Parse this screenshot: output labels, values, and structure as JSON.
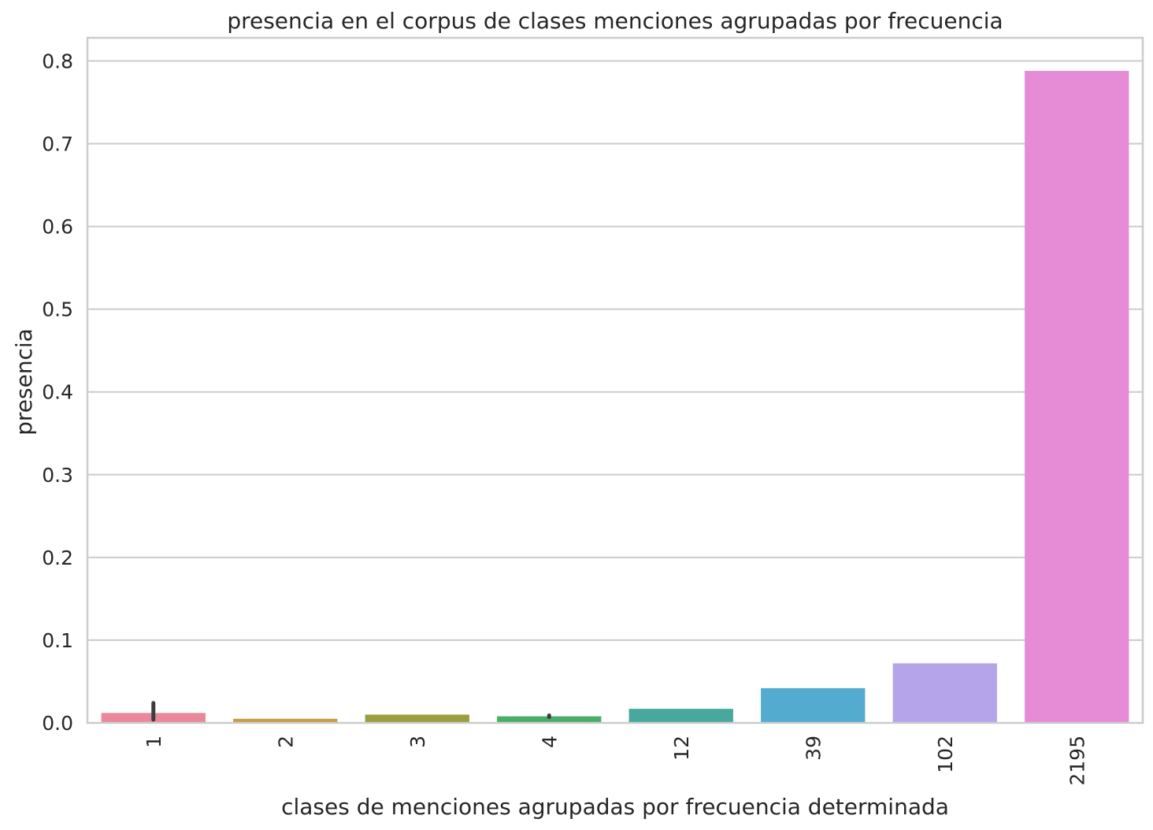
{
  "chart_data": {
    "type": "bar",
    "title": "presencia en el corpus de clases menciones agrupadas por frecuencia",
    "xlabel": "clases de menciones agrupadas por frecuencia determinada",
    "ylabel": "presencia",
    "categories": [
      "1",
      "2",
      "3",
      "4",
      "12",
      "39",
      "102",
      "2195"
    ],
    "values": [
      0.012,
      0.005,
      0.01,
      0.008,
      0.017,
      0.042,
      0.072,
      0.788
    ],
    "error_bars": [
      {
        "category": "1",
        "low": 0.004,
        "high": 0.024
      },
      {
        "category": "4",
        "low": 0.007,
        "high": 0.009
      }
    ],
    "colors": [
      "#e8889a",
      "#c99a4a",
      "#9a9e3f",
      "#4aae6b",
      "#48a89e",
      "#53acd0",
      "#b6a4ea",
      "#e68bd6"
    ],
    "ylim": [
      0,
      0.828
    ],
    "yticks": [
      0.0,
      0.1,
      0.2,
      0.3,
      0.4,
      0.5,
      0.6,
      0.7,
      0.8
    ],
    "ytick_labels": [
      "0.0",
      "0.1",
      "0.2",
      "0.3",
      "0.4",
      "0.5",
      "0.6",
      "0.7",
      "0.8"
    ],
    "xtick_rotation": "vertical",
    "grid": "horizontal",
    "legend": "none"
  }
}
